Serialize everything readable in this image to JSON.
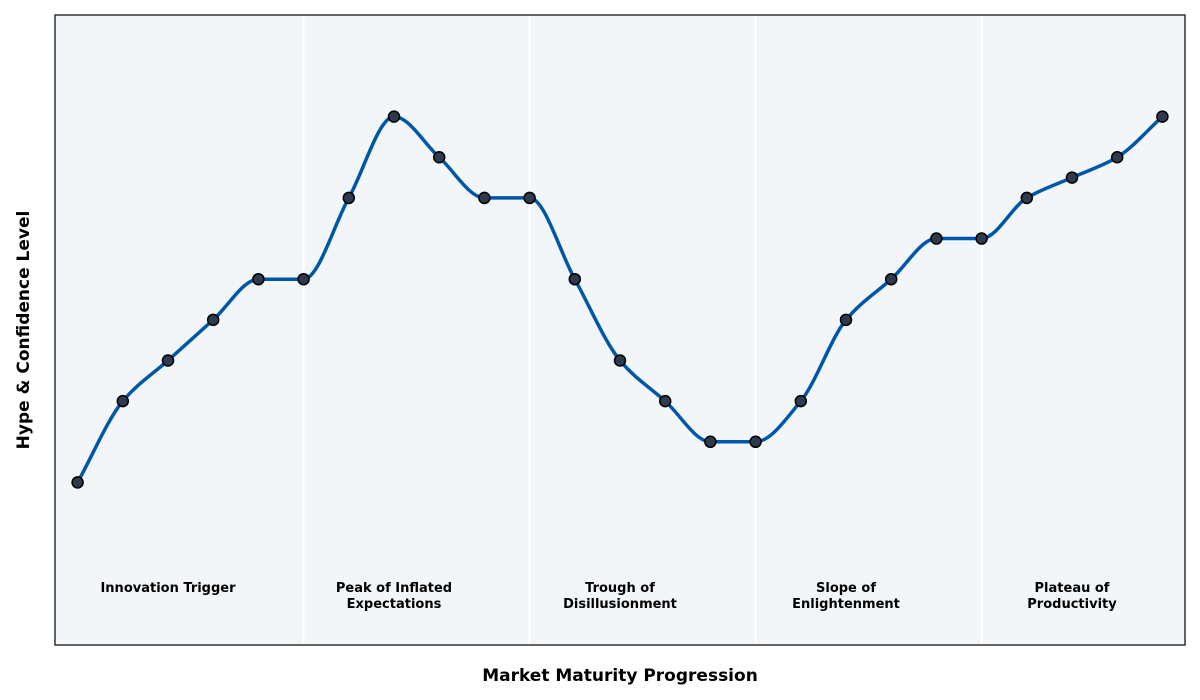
{
  "chart_data": {
    "type": "line",
    "title": "",
    "xlabel": "Market Maturity Progression",
    "ylabel": "Hype & Confidence Level",
    "x": [
      1,
      2,
      3,
      4,
      5,
      6,
      7,
      8,
      9,
      10,
      11,
      12,
      13,
      14,
      15,
      16,
      17,
      18,
      19,
      20,
      21,
      22,
      23,
      24,
      25
    ],
    "xlim": [
      0.5,
      25.5
    ],
    "ylim": [
      0.5,
      8.25
    ],
    "grid": false,
    "show_ticks": false,
    "series": [
      {
        "values": [
          2.5,
          3.5,
          4.0,
          4.5,
          5.0,
          5.0,
          6.0,
          7.0,
          6.5,
          6.0,
          6.0,
          5.0,
          4.0,
          3.5,
          3.0,
          3.0,
          3.5,
          4.5,
          5.0,
          5.5,
          5.5,
          6.0,
          6.25,
          6.5,
          7.0
        ],
        "color": "#0057a8",
        "marker_fill": "#2e3b4e",
        "marker_edge": "#000000"
      }
    ],
    "phases": [
      {
        "label_lines": [
          "Innovation Trigger"
        ],
        "x_start": 0.5,
        "x_end": 6.0,
        "label_x": 3.0
      },
      {
        "label_lines": [
          "Peak of Inflated",
          "Expectations"
        ],
        "x_start": 6.0,
        "x_end": 11.0,
        "label_x": 8.0
      },
      {
        "label_lines": [
          "Trough of",
          "Disillusionment"
        ],
        "x_start": 11.0,
        "x_end": 16.0,
        "label_x": 13.0
      },
      {
        "label_lines": [
          "Slope of",
          "Enlightenment"
        ],
        "x_start": 16.0,
        "x_end": 21.0,
        "label_x": 18.0
      },
      {
        "label_lines": [
          "Plateau of",
          "Productivity"
        ],
        "x_start": 21.0,
        "x_end": 25.5,
        "label_x": 23.0
      }
    ],
    "phase_label_y": 1.2,
    "colors": {
      "plot_background": "#f3f6f9",
      "divider": "#ffffff",
      "frame": "#333333"
    }
  }
}
